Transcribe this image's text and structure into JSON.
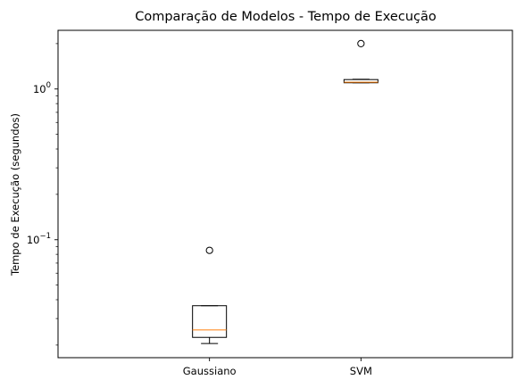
{
  "chart_data": {
    "type": "box",
    "title": "Comparação de Modelos - Tempo de Execução",
    "xlabel": "",
    "ylabel": "Tempo de Execução (segundos)",
    "yscale": "log",
    "ylim": [
      0.0165,
      2.45
    ],
    "yticks": [
      {
        "value": 0.1,
        "label": "10",
        "exp": "−1"
      },
      {
        "value": 1,
        "label": "10",
        "exp": "0"
      }
    ],
    "categories": [
      "Gaussiano",
      "SVM"
    ],
    "boxes": [
      {
        "name": "Gaussiano",
        "whisker_low": 0.0205,
        "q1": 0.0225,
        "median": 0.0252,
        "q3": 0.0365,
        "whisker_high": 0.0365,
        "outliers": [
          0.085
        ]
      },
      {
        "name": "SVM",
        "whisker_low": 1.1,
        "q1": 1.1,
        "median": 1.11,
        "q3": 1.155,
        "whisker_high": 1.16,
        "outliers": [
          2.0
        ]
      }
    ],
    "grid": false,
    "colors": {
      "box": "#000000",
      "median": "#ff7f0e",
      "outlier": "#000000"
    }
  }
}
